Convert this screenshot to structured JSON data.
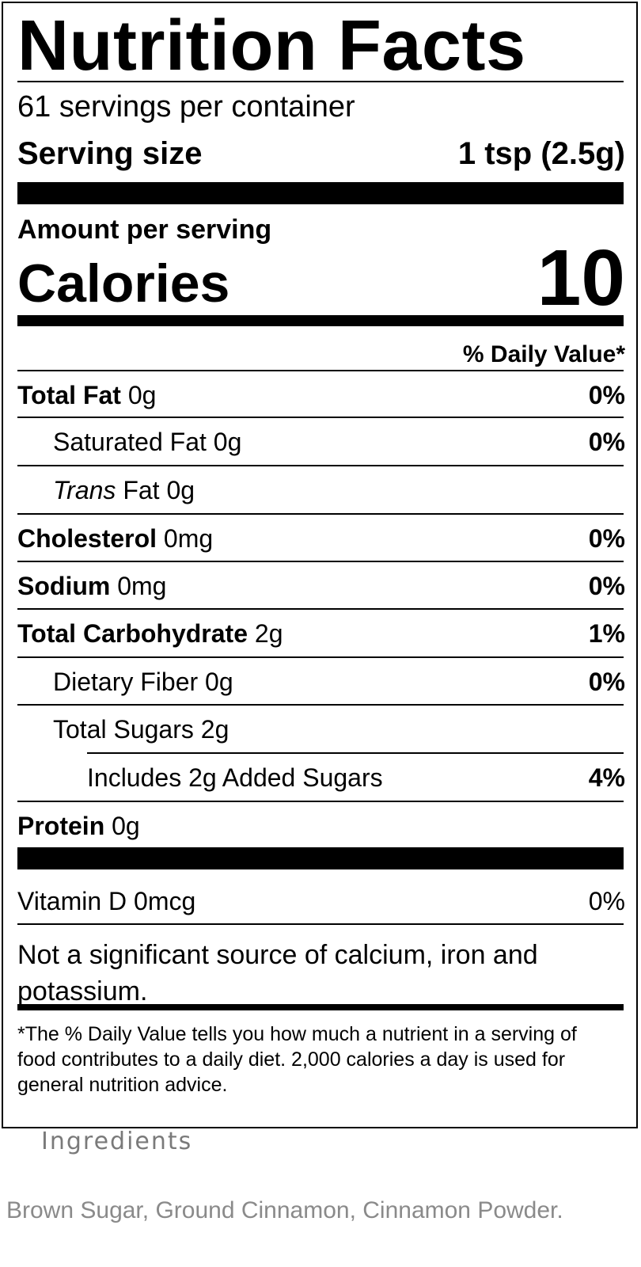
{
  "label": {
    "title": "Nutrition Facts",
    "servings_per_container": "61 servings per container",
    "serving_size_label": "Serving size",
    "serving_size_value": "1 tsp (2.5g)",
    "amount_per_serving": "Amount per serving",
    "calories_label": "Calories",
    "calories_value": "10",
    "daily_value_header": "% Daily Value*",
    "rows": [
      {
        "bold": "Total Fat",
        "italic": "",
        "text": " 0g",
        "pct": "0%"
      },
      {
        "bold": "",
        "italic": "",
        "text": "Saturated Fat 0g",
        "pct": "0%"
      },
      {
        "bold": "",
        "italic": "Trans",
        "text": " Fat 0g",
        "pct": ""
      },
      {
        "bold": "Cholesterol",
        "italic": "",
        "text": " 0mg",
        "pct": "0%"
      },
      {
        "bold": "Sodium",
        "italic": "",
        "text": " 0mg",
        "pct": "0%"
      },
      {
        "bold": "Total Carbohydrate",
        "italic": "",
        "text": " 2g",
        "pct": "1%"
      },
      {
        "bold": "",
        "italic": "",
        "text": "Dietary Fiber 0g",
        "pct": "0%"
      },
      {
        "bold": "",
        "italic": "",
        "text": "Total Sugars 2g",
        "pct": ""
      },
      {
        "bold": "",
        "italic": "",
        "text": "Includes 2g Added Sugars",
        "pct": "4%"
      },
      {
        "bold": "Protein",
        "italic": "",
        "text": " 0g",
        "pct": ""
      }
    ],
    "vitamin_d": {
      "text": "Vitamin D 0mcg",
      "pct": "0%"
    },
    "not_significant": "Not a significant source of calcium, iron and potassium.",
    "footnote": "*The % Daily Value tells you how much a nutrient in a serving of food contributes to a daily diet. 2,000 calories a day is used for general nutrition advice."
  },
  "ingredients": {
    "title": "Ingredients",
    "list": "Brown Sugar, Ground Cinnamon, Cinnamon Powder."
  }
}
